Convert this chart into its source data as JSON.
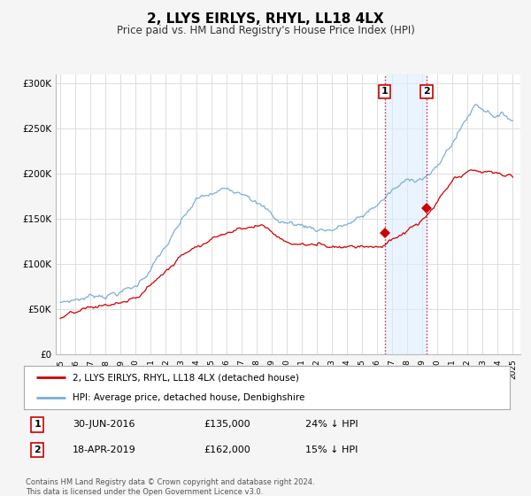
{
  "title": "2, LLYS EIRLYS, RHYL, LL18 4LX",
  "subtitle": "Price paid vs. HM Land Registry's House Price Index (HPI)",
  "title_fontsize": 11,
  "subtitle_fontsize": 8.5,
  "ylim": [
    0,
    310000
  ],
  "yticks": [
    0,
    50000,
    100000,
    150000,
    200000,
    250000,
    300000
  ],
  "ytick_labels": [
    "£0",
    "£50K",
    "£100K",
    "£150K",
    "£200K",
    "£250K",
    "£300K"
  ],
  "hpi_color": "#7bafd4",
  "price_color": "#cc0000",
  "marker_color": "#cc0000",
  "grid_color": "#dddddd",
  "sale1_date": 2016.5,
  "sale1_price": 135000,
  "sale1_label": "30-JUN-2016",
  "sale1_pct": "24% ↓ HPI",
  "sale2_date": 2019.29,
  "sale2_price": 162000,
  "sale2_label": "18-APR-2019",
  "sale2_pct": "15% ↓ HPI",
  "shade_color": "#ddeeff",
  "legend1_label": "2, LLYS EIRLYS, RHYL, LL18 4LX (detached house)",
  "legend2_label": "HPI: Average price, detached house, Denbighshire",
  "footer1": "Contains HM Land Registry data © Crown copyright and database right 2024.",
  "footer2": "This data is licensed under the Open Government Licence v3.0.",
  "bg_color": "#f5f5f5",
  "plot_bg_color": "#ffffff"
}
